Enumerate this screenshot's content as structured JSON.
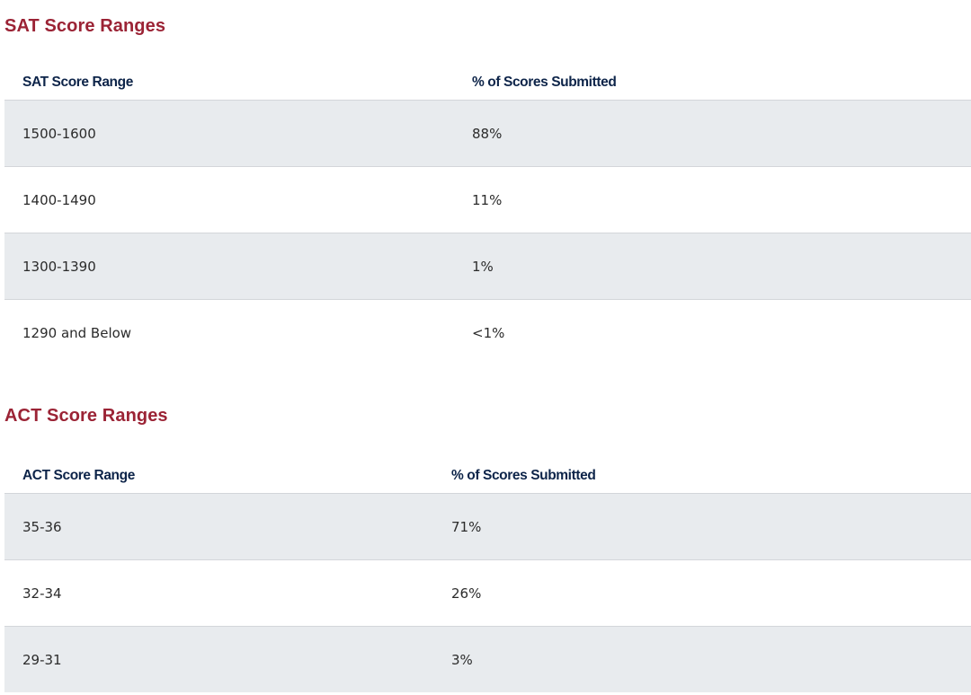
{
  "sat": {
    "title": "SAT Score Ranges",
    "headers": [
      "SAT Score Range",
      "% of Scores Submitted"
    ],
    "rows": [
      [
        "1500-1600",
        "88%"
      ],
      [
        "1400-1490",
        "11%"
      ],
      [
        "1300-1390",
        "1%"
      ],
      [
        "1290 and Below",
        "<1%"
      ]
    ]
  },
  "act": {
    "title": "ACT Score Ranges",
    "headers": [
      "ACT Score Range",
      "% of Scores Submitted"
    ],
    "rows": [
      [
        "35-36",
        "71%"
      ],
      [
        "32-34",
        "26%"
      ],
      [
        "29-31",
        "3%"
      ]
    ]
  },
  "colors": {
    "title": "#9b2335",
    "header_text": "#0d2449",
    "row_alt_background": "#e8ebee",
    "divider": "#d3d6da"
  }
}
